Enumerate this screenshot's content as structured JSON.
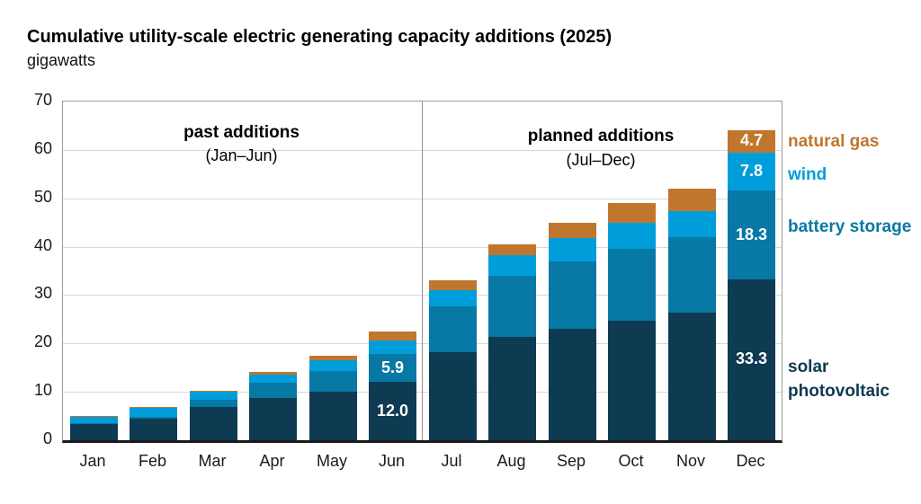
{
  "title": "Cumulative utility-scale electric generating capacity additions (2025)",
  "subtitle": "gigawatts",
  "annotations": {
    "past": {
      "label": "past additions",
      "sub": "(Jan–Jun)"
    },
    "planned": {
      "label": "planned additions",
      "sub": "(Jul–Dec)"
    }
  },
  "legend": [
    {
      "name": "natural gas",
      "color": "#c0762c"
    },
    {
      "name": "wind",
      "color": "#009ddb"
    },
    {
      "name": "battery storage",
      "color": "#0878a4"
    },
    {
      "name": "solar photovoltaic",
      "color": "#0e3a52"
    }
  ],
  "colors": {
    "solar": "#0e3a52",
    "battery": "#0878a4",
    "wind": "#009ddb",
    "natural_gas": "#c0762c",
    "gridline": "#d8d8d8",
    "axis": "#1a1a1a"
  },
  "chart_data": {
    "type": "bar",
    "stacked": true,
    "title": "Cumulative utility-scale electric generating capacity additions (2025)",
    "ylabel": "gigawatts",
    "ylim": [
      0,
      70
    ],
    "yticks": [
      0,
      10,
      20,
      30,
      40,
      50,
      60,
      70
    ],
    "grid": true,
    "divider_after_index": 5,
    "categories": [
      "Jan",
      "Feb",
      "Mar",
      "Apr",
      "May",
      "Jun",
      "Jul",
      "Aug",
      "Sep",
      "Oct",
      "Nov",
      "Dec"
    ],
    "series": [
      {
        "name": "solar photovoltaic",
        "color": "#0e3a52",
        "values": [
          3.3,
          4.4,
          6.9,
          8.8,
          10.1,
          12.0,
          18.2,
          21.4,
          23.0,
          24.7,
          26.3,
          33.3
        ]
      },
      {
        "name": "battery storage",
        "color": "#0878a4",
        "values": [
          0.3,
          0.5,
          1.5,
          3.1,
          4.2,
          5.9,
          9.4,
          12.5,
          14.0,
          14.9,
          15.7,
          18.3
        ]
      },
      {
        "name": "wind",
        "color": "#009ddb",
        "values": [
          1.2,
          1.7,
          1.7,
          1.7,
          2.2,
          2.8,
          3.4,
          4.4,
          4.7,
          5.3,
          5.4,
          7.8
        ]
      },
      {
        "name": "natural gas",
        "color": "#c0762c",
        "values": [
          0.1,
          0.2,
          0.2,
          0.6,
          0.9,
          1.8,
          2.0,
          2.2,
          3.3,
          4.2,
          4.5,
          4.7
        ]
      }
    ],
    "value_labels": [
      {
        "category": "Jun",
        "series": "battery storage",
        "text": "5.9"
      },
      {
        "category": "Jun",
        "series": "solar photovoltaic",
        "text": "12.0"
      },
      {
        "category": "Dec",
        "series": "natural gas",
        "text": "4.7"
      },
      {
        "category": "Dec",
        "series": "wind",
        "text": "7.8"
      },
      {
        "category": "Dec",
        "series": "battery storage",
        "text": "18.3"
      },
      {
        "category": "Dec",
        "series": "solar photovoltaic",
        "text": "33.3"
      }
    ]
  }
}
